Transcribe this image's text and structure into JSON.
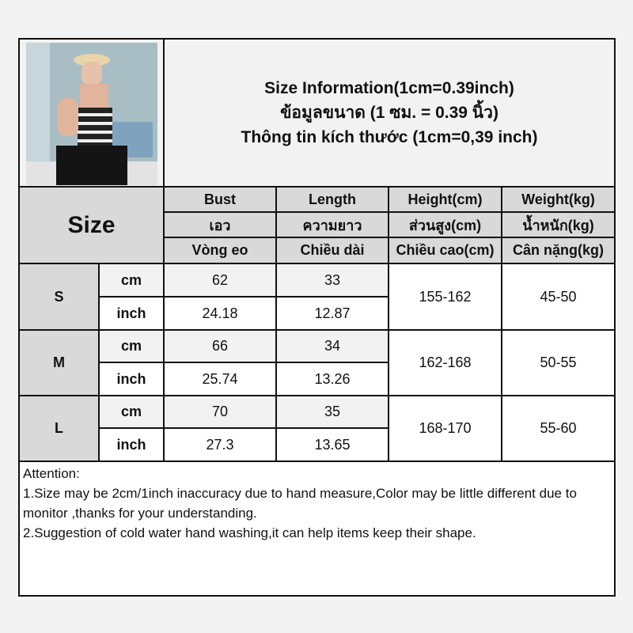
{
  "title": {
    "line1": "Size Information(1cm=0.39inch)",
    "line2": "ข้อมูลขนาด (1 ซม. = 0.39 นิ้ว)",
    "line3": "Thông tin kích thước (1cm=0,39 inch)"
  },
  "header": {
    "size_label": "Size",
    "columns": [
      {
        "en": "Bust",
        "th": "เอว",
        "vi": "Vòng eo"
      },
      {
        "en": "Length",
        "th": "ความยาว",
        "vi": "Chiều dài"
      },
      {
        "en": "Height(cm)",
        "th": "ส่วนสูง(cm)",
        "vi": "Chiều cao(cm)"
      },
      {
        "en": "Weight(kg)",
        "th": "น้ำหนัก(kg)",
        "vi": "Cân nặng(kg)"
      }
    ]
  },
  "units": {
    "cm": "cm",
    "inch": "inch"
  },
  "rows": [
    {
      "size": "S",
      "cm": {
        "bust": "62",
        "length": "33"
      },
      "inch": {
        "bust": "24.18",
        "length": "12.87"
      },
      "height": "155-162",
      "weight": "45-50"
    },
    {
      "size": "M",
      "cm": {
        "bust": "66",
        "length": "34"
      },
      "inch": {
        "bust": "25.74",
        "length": "13.26"
      },
      "height": "162-168",
      "weight": "50-55"
    },
    {
      "size": "L",
      "cm": {
        "bust": "70",
        "length": "35"
      },
      "inch": {
        "bust": "27.3",
        "length": "13.65"
      },
      "height": "168-170",
      "weight": "55-60"
    }
  ],
  "notes": {
    "heading": "Attention:",
    "line1": "1.Size may be 2cm/1inch inaccuracy due to hand measure,Color may be little different due to monitor ,thanks for your understanding.",
    "line2": "2.Suggestion of cold water hand washing,it can help items keep their shape."
  }
}
